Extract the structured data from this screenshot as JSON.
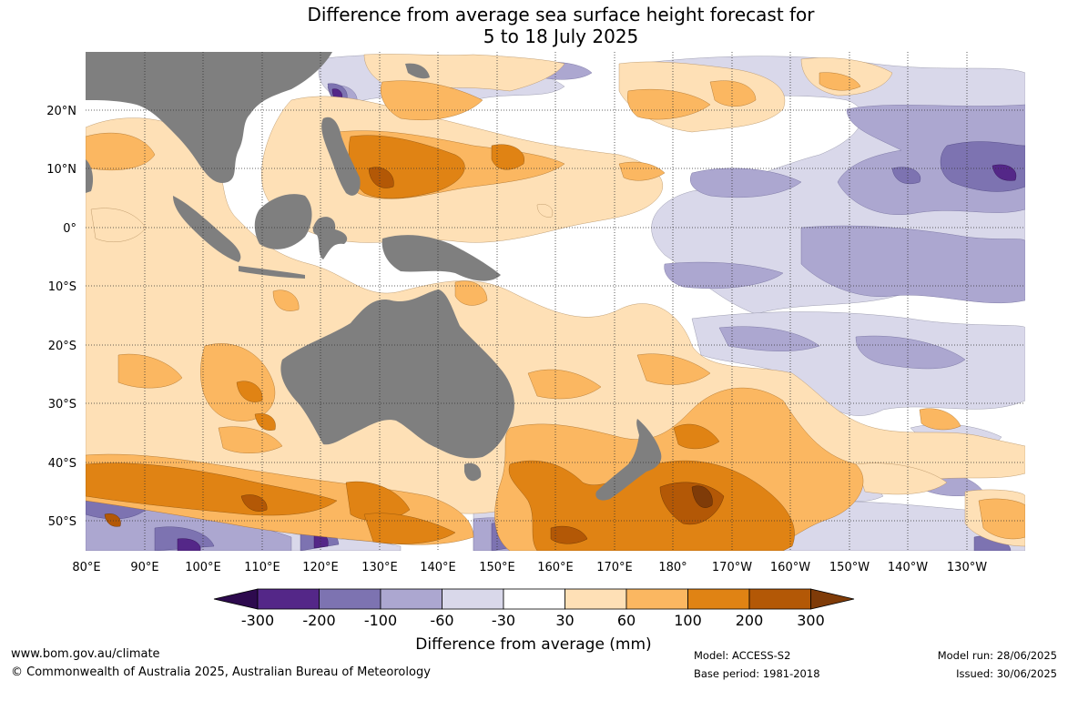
{
  "title": {
    "line1": "Difference from average sea surface height forecast for",
    "line2": "5 to 18 July 2025"
  },
  "map": {
    "lat_labels": [
      "20°N",
      "10°N",
      "0°",
      "10°S",
      "20°S",
      "30°S",
      "40°S",
      "50°S"
    ],
    "lon_labels": [
      "80°E",
      "90°E",
      "100°E",
      "110°E",
      "120°E",
      "130°E",
      "140°E",
      "150°E",
      "160°E",
      "170°E",
      "180°",
      "170°W",
      "160°W",
      "150°W",
      "140°W",
      "130°W"
    ],
    "colors": {
      "land": "#7f7f7f",
      "ocean_background": "#ffffff",
      "grid": "#333333"
    }
  },
  "colorbar": {
    "ticks": [
      "-300",
      "-200",
      "-100",
      "-60",
      "-30",
      "30",
      "60",
      "100",
      "200",
      "300"
    ],
    "colors": [
      "#2d0a4e",
      "#542788",
      "#7d73b1",
      "#aca7d0",
      "#d9d8ea",
      "#ffffff",
      "#fee0b6",
      "#fbb761",
      "#e08314",
      "#b35806",
      "#7f3b08"
    ],
    "label": "Difference from average (mm)"
  },
  "footer": {
    "website": "www.bom.gov.au/climate",
    "copyright": "© Commonwealth of Australia 2025, Australian Bureau of Meteorology",
    "model": "Model: ACCESS-S2",
    "base_period": "Base period: 1981-2018",
    "model_run": "Model run: 28/06/2025",
    "issued": "Issued: 30/06/2025"
  }
}
